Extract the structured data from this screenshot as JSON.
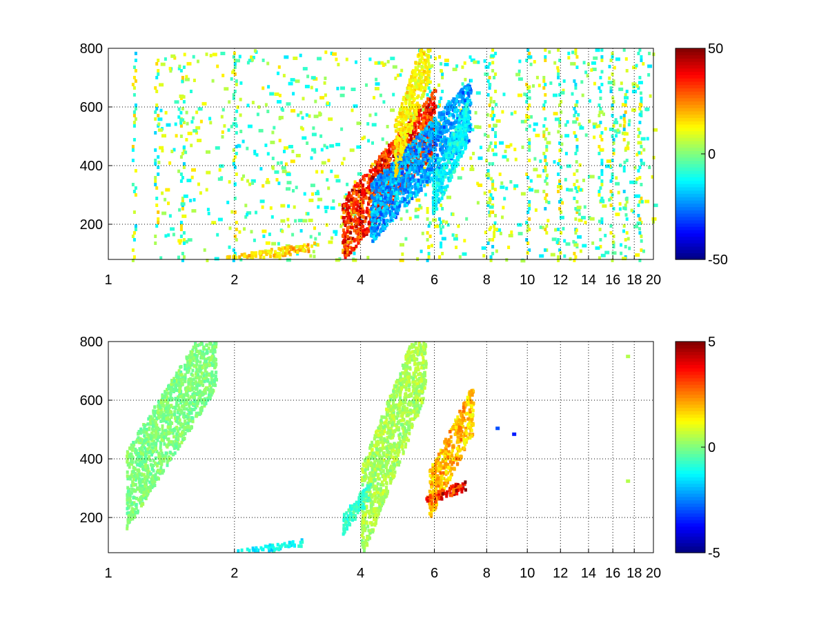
{
  "chart_data": [
    {
      "type": "heatmap",
      "title": "",
      "xlabel": "",
      "ylabel": "",
      "xscale": "log",
      "xlim": [
        1,
        20
      ],
      "ylim": [
        80,
        800
      ],
      "xticks": [
        1,
        2,
        4,
        6,
        8,
        10,
        12,
        14,
        16,
        18,
        20
      ],
      "xtick_labels": [
        "1",
        "2",
        "4",
        "6",
        "8",
        "10",
        "12",
        "14",
        "16",
        "18",
        "20"
      ],
      "yticks": [
        200,
        400,
        600,
        800
      ],
      "ytick_labels": [
        "200",
        "400",
        "600",
        "800"
      ],
      "grid": true,
      "colormap": "jet",
      "clim": [
        -50,
        50
      ],
      "colorbar_ticks": [
        -50,
        0,
        50
      ],
      "colorbar_labels": [
        "-50",
        "0",
        "50"
      ],
      "features": [
        {
          "x": [
            3.6,
            6.0
          ],
          "y": [
            180,
            560
          ],
          "value": 40
        },
        {
          "x": [
            4.2,
            7.3
          ],
          "y": [
            240,
            600
          ],
          "value": -25
        },
        {
          "x": [
            1.9,
            3.1
          ],
          "y": [
            80,
            130
          ],
          "value": 20
        },
        {
          "x": [
            4.8,
            5.8
          ],
          "y": [
            460,
            800
          ],
          "value": 15
        },
        {
          "x": [
            5.9,
            7.2
          ],
          "y": [
            300,
            560
          ],
          "value": -15
        }
      ],
      "stripes": [
        1.15,
        1.3,
        1.5,
        2.0,
        5.8,
        6.2,
        8.1,
        8.3,
        10.0,
        11.0,
        11.9,
        13.0,
        14.9,
        15.9,
        17.1,
        18.5
      ]
    },
    {
      "type": "heatmap",
      "title": "",
      "xlabel": "",
      "ylabel": "",
      "xscale": "log",
      "xlim": [
        1,
        20
      ],
      "ylim": [
        80,
        800
      ],
      "xticks": [
        1,
        2,
        4,
        6,
        8,
        10,
        12,
        14,
        16,
        18,
        20
      ],
      "xtick_labels": [
        "1",
        "2",
        "4",
        "6",
        "8",
        "10",
        "12",
        "14",
        "16",
        "18",
        "20"
      ],
      "yticks": [
        200,
        400,
        600,
        800
      ],
      "ytick_labels": [
        "200",
        "400",
        "600",
        "800"
      ],
      "grid": true,
      "colormap": "jet",
      "clim": [
        -5,
        5
      ],
      "colorbar_ticks": [
        -5,
        0,
        5
      ],
      "colorbar_labels": [
        "-5",
        "0",
        "5"
      ],
      "features": [
        {
          "x": [
            4.0,
            5.7
          ],
          "y": [
            220,
            780
          ],
          "value": 0.5
        },
        {
          "x": [
            3.6,
            4.2
          ],
          "y": [
            180,
            300
          ],
          "value": -0.8
        },
        {
          "x": [
            5.8,
            7.4
          ],
          "y": [
            280,
            580
          ],
          "value": 2.2
        },
        {
          "x": [
            5.7,
            7.2
          ],
          "y": [
            260,
            320
          ],
          "value": 4.2
        },
        {
          "x": [
            2.0,
            2.9
          ],
          "y": [
            80,
            120
          ],
          "value": -1.5
        },
        {
          "x": [
            1.1,
            1.8
          ],
          "y": [
            300,
            780
          ],
          "value": 0.0
        }
      ],
      "points": [
        {
          "x": 8.4,
          "y": 510,
          "value": -3
        },
        {
          "x": 9.2,
          "y": 490,
          "value": -3.5
        },
        {
          "x": 17.2,
          "y": 330,
          "value": 0.5
        },
        {
          "x": 17.2,
          "y": 755,
          "value": 0.5
        }
      ]
    }
  ]
}
